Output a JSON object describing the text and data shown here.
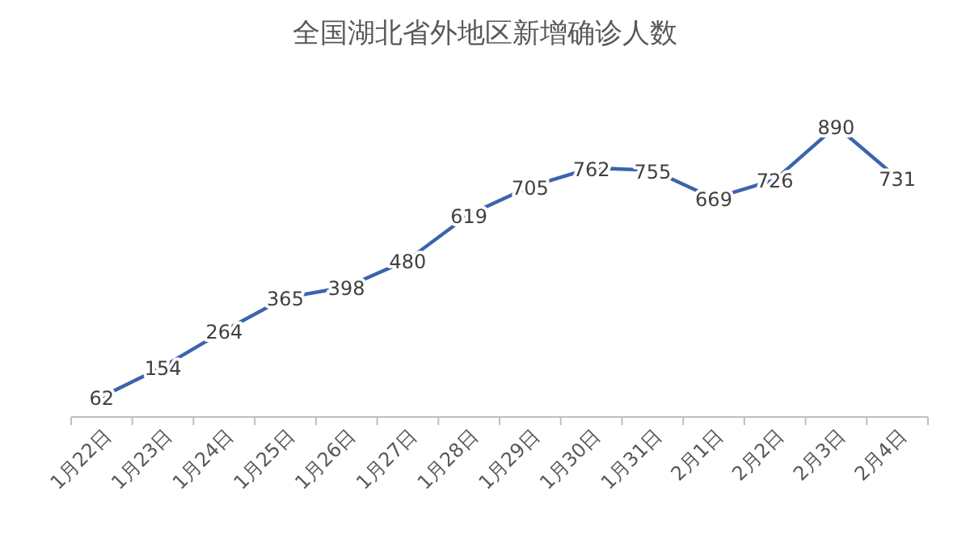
{
  "chart_data": {
    "type": "line",
    "title": "全国湖北省外地区新增确诊人数",
    "categories": [
      "1月22日",
      "1月23日",
      "1月24日",
      "1月25日",
      "1月26日",
      "1月27日",
      "1月28日",
      "1月29日",
      "1月30日",
      "1月31日",
      "2月1日",
      "2月2日",
      "2月3日",
      "2月4日"
    ],
    "series": [
      {
        "color": "#3b64ad",
        "values": [
          62,
          154,
          264,
          365,
          398,
          480,
          619,
          705,
          762,
          755,
          669,
          726,
          890,
          731
        ]
      }
    ],
    "data_labels": true,
    "line_style": "solid"
  }
}
